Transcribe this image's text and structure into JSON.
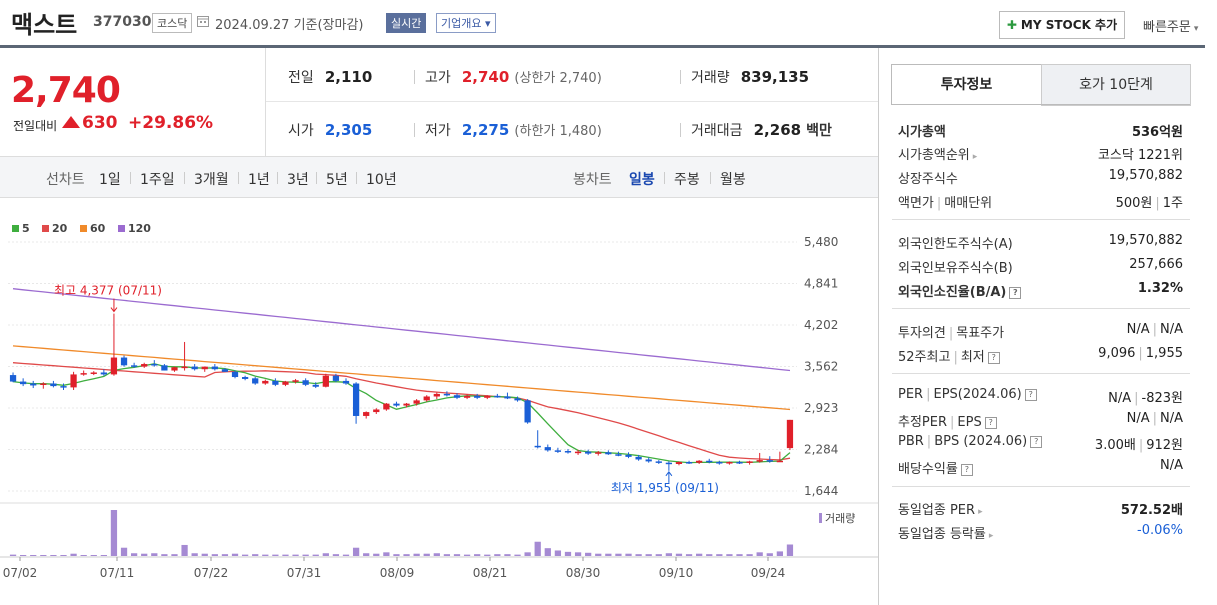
{
  "header": {
    "title": "맥스트",
    "code": "377030",
    "market": "코스닥",
    "date": "2024.09.27  기준(장마감)",
    "realtime": "실시간",
    "company_info": "기업개요 ▾",
    "my_stock": "MY STOCK 추가",
    "quick_order": "빠른주문"
  },
  "price": {
    "current": "2,740",
    "change_label": "전일대비",
    "change": "630",
    "change_pct": "+29.86%"
  },
  "stats": {
    "prev_label": "전일",
    "prev": "2,110",
    "high_label": "고가",
    "high": "2,740",
    "upper_limit": "(상한가 2,740)",
    "volume_label": "거래량",
    "volume": "839,135",
    "open_label": "시가",
    "open": "2,305",
    "low_label": "저가",
    "low": "2,275",
    "lower_limit": "(하한가 1,480)",
    "amount_label": "거래대금",
    "amount": "2,268",
    "amount_unit": "백만"
  },
  "period_bar": {
    "line_label": "선차트",
    "line_periods": [
      "1일",
      "1주일",
      "3개월",
      "1년",
      "3년",
      "5년",
      "10년"
    ],
    "candle_label": "봉차트",
    "candle_periods": [
      "일봉",
      "주봉",
      "월봉"
    ],
    "active_candle": "일봉"
  },
  "chart_data": {
    "type": "candlestick",
    "legend": [
      {
        "name": "5",
        "color": "#3fae3f"
      },
      {
        "name": "20",
        "color": "#e04a4a"
      },
      {
        "name": "60",
        "color": "#f08a2a"
      },
      {
        "name": "120",
        "color": "#9b6bd0"
      }
    ],
    "y_ticks": [
      "5,480",
      "4,841",
      "4,202",
      "3,562",
      "2,923",
      "2,284",
      "1,644"
    ],
    "ylim": [
      1644,
      5480
    ],
    "x_ticks": [
      "07/02",
      "07/11",
      "07/22",
      "07/31",
      "08/09",
      "08/21",
      "08/30",
      "09/10",
      "09/24"
    ],
    "high_annotation": "최고 4,377 (07/11)",
    "low_annotation": "최저 1,955 (09/11)",
    "volume_label": "거래량",
    "up_color": "#e0202a",
    "down_color": "#1a5fd6",
    "candles": [
      {
        "o": 3430,
        "h": 3470,
        "l": 3320,
        "c": 3330
      },
      {
        "o": 3330,
        "h": 3380,
        "l": 3260,
        "c": 3290
      },
      {
        "o": 3300,
        "h": 3340,
        "l": 3230,
        "c": 3270
      },
      {
        "o": 3280,
        "h": 3320,
        "l": 3220,
        "c": 3300
      },
      {
        "o": 3300,
        "h": 3340,
        "l": 3240,
        "c": 3260
      },
      {
        "o": 3260,
        "h": 3300,
        "l": 3200,
        "c": 3240
      },
      {
        "o": 3240,
        "h": 3480,
        "l": 3200,
        "c": 3440
      },
      {
        "o": 3440,
        "h": 3500,
        "l": 3420,
        "c": 3460
      },
      {
        "o": 3460,
        "h": 3490,
        "l": 3430,
        "c": 3470
      },
      {
        "o": 3470,
        "h": 3520,
        "l": 3420,
        "c": 3440
      },
      {
        "o": 3440,
        "h": 4377,
        "l": 3420,
        "c": 3700
      },
      {
        "o": 3700,
        "h": 3730,
        "l": 3560,
        "c": 3580
      },
      {
        "o": 3580,
        "h": 3620,
        "l": 3540,
        "c": 3560
      },
      {
        "o": 3560,
        "h": 3620,
        "l": 3540,
        "c": 3600
      },
      {
        "o": 3600,
        "h": 3660,
        "l": 3560,
        "c": 3580
      },
      {
        "o": 3580,
        "h": 3600,
        "l": 3500,
        "c": 3500
      },
      {
        "o": 3500,
        "h": 3560,
        "l": 3480,
        "c": 3550
      },
      {
        "o": 3550,
        "h": 3940,
        "l": 3500,
        "c": 3560
      },
      {
        "o": 3560,
        "h": 3600,
        "l": 3500,
        "c": 3520
      },
      {
        "o": 3520,
        "h": 3560,
        "l": 3480,
        "c": 3560
      },
      {
        "o": 3560,
        "h": 3600,
        "l": 3500,
        "c": 3520
      },
      {
        "o": 3520,
        "h": 3540,
        "l": 3480,
        "c": 3480
      },
      {
        "o": 3480,
        "h": 3500,
        "l": 3380,
        "c": 3400
      },
      {
        "o": 3400,
        "h": 3420,
        "l": 3350,
        "c": 3370
      },
      {
        "o": 3380,
        "h": 3400,
        "l": 3280,
        "c": 3300
      },
      {
        "o": 3300,
        "h": 3360,
        "l": 3280,
        "c": 3340
      },
      {
        "o": 3340,
        "h": 3380,
        "l": 3260,
        "c": 3280
      },
      {
        "o": 3280,
        "h": 3340,
        "l": 3260,
        "c": 3330
      },
      {
        "o": 3330,
        "h": 3370,
        "l": 3300,
        "c": 3350
      },
      {
        "o": 3350,
        "h": 3380,
        "l": 3260,
        "c": 3280
      },
      {
        "o": 3280,
        "h": 3320,
        "l": 3230,
        "c": 3250
      },
      {
        "o": 3250,
        "h": 3450,
        "l": 3240,
        "c": 3420
      },
      {
        "o": 3420,
        "h": 3450,
        "l": 3320,
        "c": 3340
      },
      {
        "o": 3340,
        "h": 3380,
        "l": 3280,
        "c": 3300
      },
      {
        "o": 3300,
        "h": 3320,
        "l": 2680,
        "c": 2800
      },
      {
        "o": 2800,
        "h": 2870,
        "l": 2760,
        "c": 2860
      },
      {
        "o": 2860,
        "h": 2920,
        "l": 2830,
        "c": 2900
      },
      {
        "o": 2900,
        "h": 3000,
        "l": 2880,
        "c": 2990
      },
      {
        "o": 2990,
        "h": 3020,
        "l": 2940,
        "c": 2960
      },
      {
        "o": 2960,
        "h": 3000,
        "l": 2930,
        "c": 2990
      },
      {
        "o": 2990,
        "h": 3060,
        "l": 2960,
        "c": 3040
      },
      {
        "o": 3040,
        "h": 3120,
        "l": 3020,
        "c": 3100
      },
      {
        "o": 3100,
        "h": 3160,
        "l": 3060,
        "c": 3140
      },
      {
        "o": 3140,
        "h": 3180,
        "l": 3100,
        "c": 3120
      },
      {
        "o": 3120,
        "h": 3150,
        "l": 3060,
        "c": 3080
      },
      {
        "o": 3080,
        "h": 3130,
        "l": 3060,
        "c": 3110
      },
      {
        "o": 3110,
        "h": 3140,
        "l": 3060,
        "c": 3080
      },
      {
        "o": 3080,
        "h": 3120,
        "l": 3060,
        "c": 3110
      },
      {
        "o": 3110,
        "h": 3140,
        "l": 3080,
        "c": 3100
      },
      {
        "o": 3100,
        "h": 3160,
        "l": 3060,
        "c": 3070
      },
      {
        "o": 3070,
        "h": 3100,
        "l": 3020,
        "c": 3040
      },
      {
        "o": 3040,
        "h": 3060,
        "l": 2680,
        "c": 2700
      },
      {
        "o": 2340,
        "h": 2580,
        "l": 2300,
        "c": 2320
      },
      {
        "o": 2320,
        "h": 2360,
        "l": 2250,
        "c": 2270
      },
      {
        "o": 2270,
        "h": 2310,
        "l": 2230,
        "c": 2260
      },
      {
        "o": 2260,
        "h": 2290,
        "l": 2220,
        "c": 2240
      },
      {
        "o": 2240,
        "h": 2280,
        "l": 2200,
        "c": 2250
      },
      {
        "o": 2250,
        "h": 2280,
        "l": 2200,
        "c": 2220
      },
      {
        "o": 2220,
        "h": 2260,
        "l": 2190,
        "c": 2240
      },
      {
        "o": 2240,
        "h": 2270,
        "l": 2200,
        "c": 2210
      },
      {
        "o": 2210,
        "h": 2250,
        "l": 2180,
        "c": 2200
      },
      {
        "o": 2200,
        "h": 2240,
        "l": 2150,
        "c": 2170
      },
      {
        "o": 2170,
        "h": 2200,
        "l": 2110,
        "c": 2130
      },
      {
        "o": 2130,
        "h": 2160,
        "l": 2080,
        "c": 2100
      },
      {
        "o": 2100,
        "h": 2120,
        "l": 2060,
        "c": 2080
      },
      {
        "o": 2080,
        "h": 2100,
        "l": 1955,
        "c": 2060
      },
      {
        "o": 2060,
        "h": 2100,
        "l": 2040,
        "c": 2090
      },
      {
        "o": 2090,
        "h": 2110,
        "l": 2060,
        "c": 2080
      },
      {
        "o": 2080,
        "h": 2120,
        "l": 2060,
        "c": 2110
      },
      {
        "o": 2110,
        "h": 2140,
        "l": 2070,
        "c": 2090
      },
      {
        "o": 2090,
        "h": 2110,
        "l": 2050,
        "c": 2070
      },
      {
        "o": 2070,
        "h": 2100,
        "l": 2050,
        "c": 2090
      },
      {
        "o": 2090,
        "h": 2110,
        "l": 2060,
        "c": 2080
      },
      {
        "o": 2080,
        "h": 2110,
        "l": 2050,
        "c": 2100
      },
      {
        "o": 2100,
        "h": 2230,
        "l": 2080,
        "c": 2120
      },
      {
        "o": 2120,
        "h": 2180,
        "l": 2080,
        "c": 2110
      },
      {
        "o": 2110,
        "h": 2250,
        "l": 2100,
        "c": 2110
      },
      {
        "o": 2305,
        "h": 2740,
        "l": 2275,
        "c": 2740
      }
    ],
    "volumes": [
      0.03,
      0.02,
      0.02,
      0.02,
      0.02,
      0.02,
      0.05,
      0.02,
      0.02,
      0.02,
      1.0,
      0.18,
      0.06,
      0.05,
      0.06,
      0.04,
      0.04,
      0.24,
      0.06,
      0.05,
      0.04,
      0.04,
      0.05,
      0.03,
      0.04,
      0.03,
      0.03,
      0.03,
      0.03,
      0.03,
      0.03,
      0.06,
      0.04,
      0.03,
      0.18,
      0.06,
      0.05,
      0.08,
      0.04,
      0.04,
      0.05,
      0.05,
      0.06,
      0.04,
      0.04,
      0.03,
      0.04,
      0.03,
      0.04,
      0.04,
      0.03,
      0.08,
      0.31,
      0.17,
      0.12,
      0.09,
      0.08,
      0.07,
      0.05,
      0.05,
      0.05,
      0.05,
      0.04,
      0.04,
      0.04,
      0.06,
      0.05,
      0.04,
      0.05,
      0.04,
      0.04,
      0.04,
      0.04,
      0.04,
      0.08,
      0.06,
      0.1,
      0.25
    ]
  },
  "invest_panel": {
    "tab_invest": "투자정보",
    "tab_ask": "호가 10단계",
    "rows": [
      {
        "k": "시가총액",
        "v": "536억원"
      },
      {
        "k": "시가총액순위",
        "v": "코스닥 1221위"
      },
      {
        "k": "상장주식수",
        "v": "19,570,882"
      },
      {
        "k": "액면가",
        "k2": "매매단위",
        "v": "500원",
        "v2": "1주"
      },
      {
        "k": "외국인한도주식수(A)",
        "v": "19,570,882"
      },
      {
        "k": "외국인보유주식수(B)",
        "v": "257,666"
      },
      {
        "k": "외국인소진율(B/A)",
        "v": "1.32%"
      },
      {
        "k": "투자의견",
        "k2": "목표주가",
        "v": "N/A",
        "v2": "N/A"
      },
      {
        "k": "52주최고",
        "k2": "최저",
        "v": "9,096",
        "v2": "1,955"
      },
      {
        "k": "PER",
        "k2": "EPS(2024.06)",
        "v": "N/A",
        "v2": "-823원"
      },
      {
        "k": "추정PER",
        "k2": "EPS",
        "v": "N/A",
        "v2": "N/A"
      },
      {
        "k": "PBR",
        "k2": "BPS (2024.06)",
        "v": "3.00배",
        "v2": "912원"
      },
      {
        "k": "배당수익률",
        "v": "N/A"
      },
      {
        "k": "동일업종 PER",
        "v": "572.52배"
      },
      {
        "k": "동일업종 등락률",
        "v": "-0.06%"
      }
    ]
  }
}
